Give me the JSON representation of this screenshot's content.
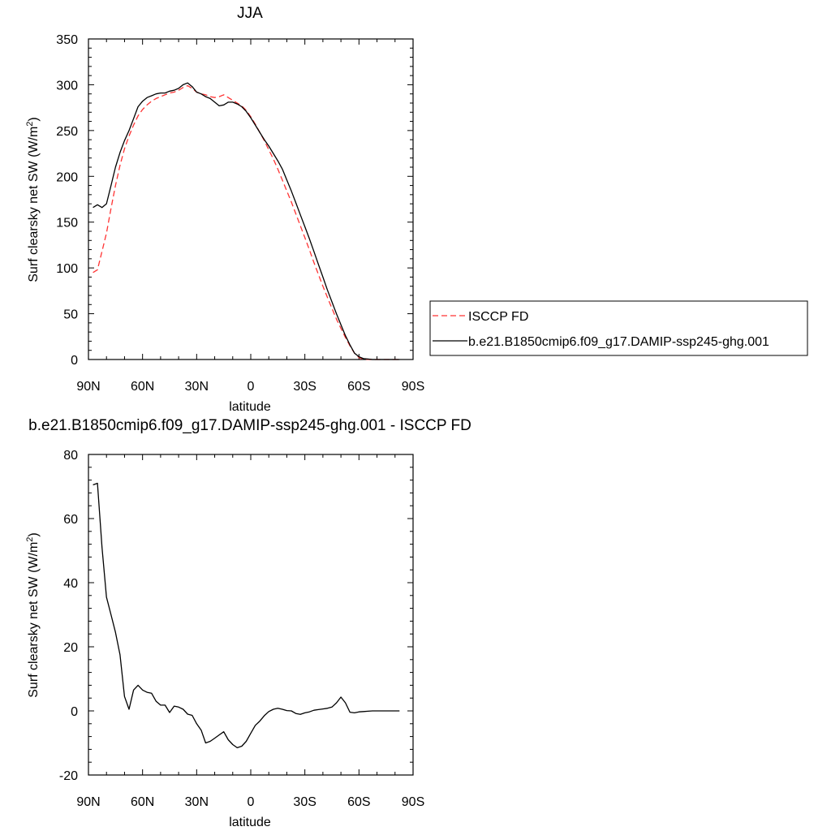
{
  "chart_data": [
    {
      "type": "line",
      "title": "JJA",
      "xlabel": "latitude",
      "ylabel_main": "Surf clearsky net SW (W/m",
      "ylabel_sup": "2",
      "ylabel_end": ")",
      "xlim": [
        90,
        -90
      ],
      "ylim": [
        0,
        350
      ],
      "xticks": [
        90,
        60,
        30,
        0,
        -30,
        -60,
        -90
      ],
      "xtick_labels": [
        "90N",
        "60N",
        "30N",
        "0",
        "30S",
        "60S",
        "90S"
      ],
      "yticks": [
        0,
        50,
        100,
        150,
        200,
        250,
        300,
        350
      ],
      "ytick_labels": [
        "0",
        "50",
        "100",
        "150",
        "200",
        "250",
        "300",
        "350"
      ],
      "legend_position": "right",
      "series": [
        {
          "name": "ISCCP FD",
          "color": "#ff3333",
          "dash": "dashed",
          "x": [
            87.5,
            85,
            82.5,
            80,
            77.5,
            75,
            72.5,
            70,
            67.5,
            65,
            62.5,
            60,
            57.5,
            55,
            52.5,
            50,
            47.5,
            45,
            42.5,
            40,
            37.5,
            35,
            32.5,
            30,
            27.5,
            25,
            22.5,
            20,
            17.5,
            15,
            12.5,
            10,
            7.5,
            5,
            2.5,
            0,
            -2.5,
            -5,
            -7.5,
            -10,
            -12.5,
            -15,
            -17.5,
            -20,
            -22.5,
            -25,
            -27.5,
            -30,
            -32.5,
            -35,
            -37.5,
            -40,
            -42.5,
            -45,
            -47.5,
            -50,
            -52.5,
            -55,
            -57.5,
            -60,
            -62.5,
            -65,
            -67.5,
            -70,
            -72.5,
            -75,
            -77.5,
            -80,
            -82.5
          ],
          "y": [
            95,
            98,
            118,
            138,
            165,
            190,
            212,
            230,
            244,
            256,
            266,
            273,
            278,
            282,
            285,
            287,
            289,
            291,
            292,
            294,
            297,
            299,
            296,
            292,
            290,
            289,
            287,
            286,
            287,
            289,
            286,
            283,
            280,
            277,
            272,
            265,
            257,
            248,
            239,
            229,
            219,
            208,
            196,
            184,
            172,
            159,
            146,
            133,
            120,
            106,
            93,
            80,
            68,
            56,
            44,
            34,
            24,
            15,
            7,
            2,
            0.5,
            0.2,
            0,
            0,
            0,
            0,
            0,
            0,
            0
          ]
        },
        {
          "name": "b.e21.B1850cmip6.f09_g17.DAMIP-ssp245-ghg.001",
          "color": "#000000",
          "dash": "solid",
          "x": [
            87.5,
            85,
            82.5,
            80,
            77.5,
            75,
            72.5,
            70,
            67.5,
            65,
            62.5,
            60,
            57.5,
            55,
            52.5,
            50,
            47.5,
            45,
            42.5,
            40,
            37.5,
            35,
            32.5,
            30,
            27.5,
            25,
            22.5,
            20,
            17.5,
            15,
            12.5,
            10,
            7.5,
            5,
            2.5,
            0,
            -2.5,
            -5,
            -7.5,
            -10,
            -12.5,
            -15,
            -17.5,
            -20,
            -22.5,
            -25,
            -27.5,
            -30,
            -32.5,
            -35,
            -37.5,
            -40,
            -42.5,
            -45,
            -47.5,
            -50,
            -52.5,
            -55,
            -57.5,
            -60,
            -62.5,
            -65,
            -67.5,
            -70,
            -72.5,
            -75,
            -77.5,
            -80,
            -82.5
          ],
          "y": [
            166,
            169,
            166,
            170,
            190,
            210,
            226,
            239,
            250,
            263,
            276,
            282,
            286,
            288,
            290,
            291,
            291,
            293,
            294,
            296,
            300,
            302,
            298,
            292,
            290,
            287,
            285,
            281,
            277,
            278,
            281,
            281,
            279,
            276,
            271,
            264,
            256,
            248,
            240,
            233,
            225,
            217,
            208,
            196,
            184,
            171,
            158,
            145,
            132,
            118,
            104,
            90,
            76,
            63,
            50,
            38,
            26,
            16,
            7,
            3,
            1,
            0.5,
            0,
            0,
            0,
            0,
            0,
            0,
            0
          ]
        }
      ]
    },
    {
      "type": "line",
      "title": "b.e21.B1850cmip6.f09_g17.DAMIP-ssp245-ghg.001 - ISCCP FD",
      "xlabel": "latitude",
      "ylabel_main": "Surf clearsky net SW (W/m",
      "ylabel_sup": "2",
      "ylabel_end": ")",
      "xlim": [
        90,
        -90
      ],
      "ylim": [
        -20,
        80
      ],
      "xticks": [
        90,
        60,
        30,
        0,
        -30,
        -60,
        -90
      ],
      "xtick_labels": [
        "90N",
        "60N",
        "30N",
        "0",
        "30S",
        "60S",
        "90S"
      ],
      "yticks": [
        -20,
        0,
        20,
        40,
        60,
        80
      ],
      "ytick_labels": [
        "-20",
        "0",
        "20",
        "40",
        "60",
        "80"
      ],
      "series": [
        {
          "color": "#000000",
          "dash": "solid",
          "x": [
            87.5,
            85,
            82.5,
            80,
            77.5,
            75,
            72.5,
            70,
            67.5,
            65,
            62.5,
            60,
            57.5,
            55,
            52.5,
            50,
            47.5,
            45,
            42.5,
            40,
            37.5,
            35,
            32.5,
            30,
            27.5,
            25,
            22.5,
            20,
            17.5,
            15,
            12.5,
            10,
            7.5,
            5,
            2.5,
            0,
            -2.5,
            -5,
            -7.5,
            -10,
            -12.5,
            -15,
            -17.5,
            -20,
            -22.5,
            -25,
            -27.5,
            -30,
            -32.5,
            -35,
            -37.5,
            -40,
            -42.5,
            -45,
            -47.5,
            -50,
            -52.5,
            -55,
            -57.5,
            -60,
            -62.5,
            -65,
            -67.5,
            -70,
            -72.5,
            -75,
            -77.5,
            -80,
            -82.5
          ],
          "y": [
            70.5,
            71,
            51,
            35.5,
            30,
            24.5,
            17.5,
            4.5,
            0.5,
            6.5,
            8,
            6.5,
            5.8,
            5.5,
            3,
            1.8,
            1.8,
            -0.5,
            1.5,
            1.2,
            0.5,
            -1,
            -1.4,
            -4,
            -6,
            -10,
            -9.5,
            -8.5,
            -7.5,
            -6.5,
            -9,
            -10.5,
            -11.5,
            -11,
            -9.5,
            -7,
            -4.5,
            -3.2,
            -1.5,
            -0.2,
            0.5,
            0.8,
            0.5,
            0.1,
            0,
            -0.8,
            -1.1,
            -0.6,
            -0.3,
            0.2,
            0.4,
            0.6,
            0.8,
            1.2,
            2.5,
            4.3,
            2.5,
            -0.4,
            -0.6,
            -0.3,
            -0.2,
            -0.1,
            0,
            0,
            0,
            0,
            0,
            0,
            0
          ]
        }
      ]
    }
  ]
}
